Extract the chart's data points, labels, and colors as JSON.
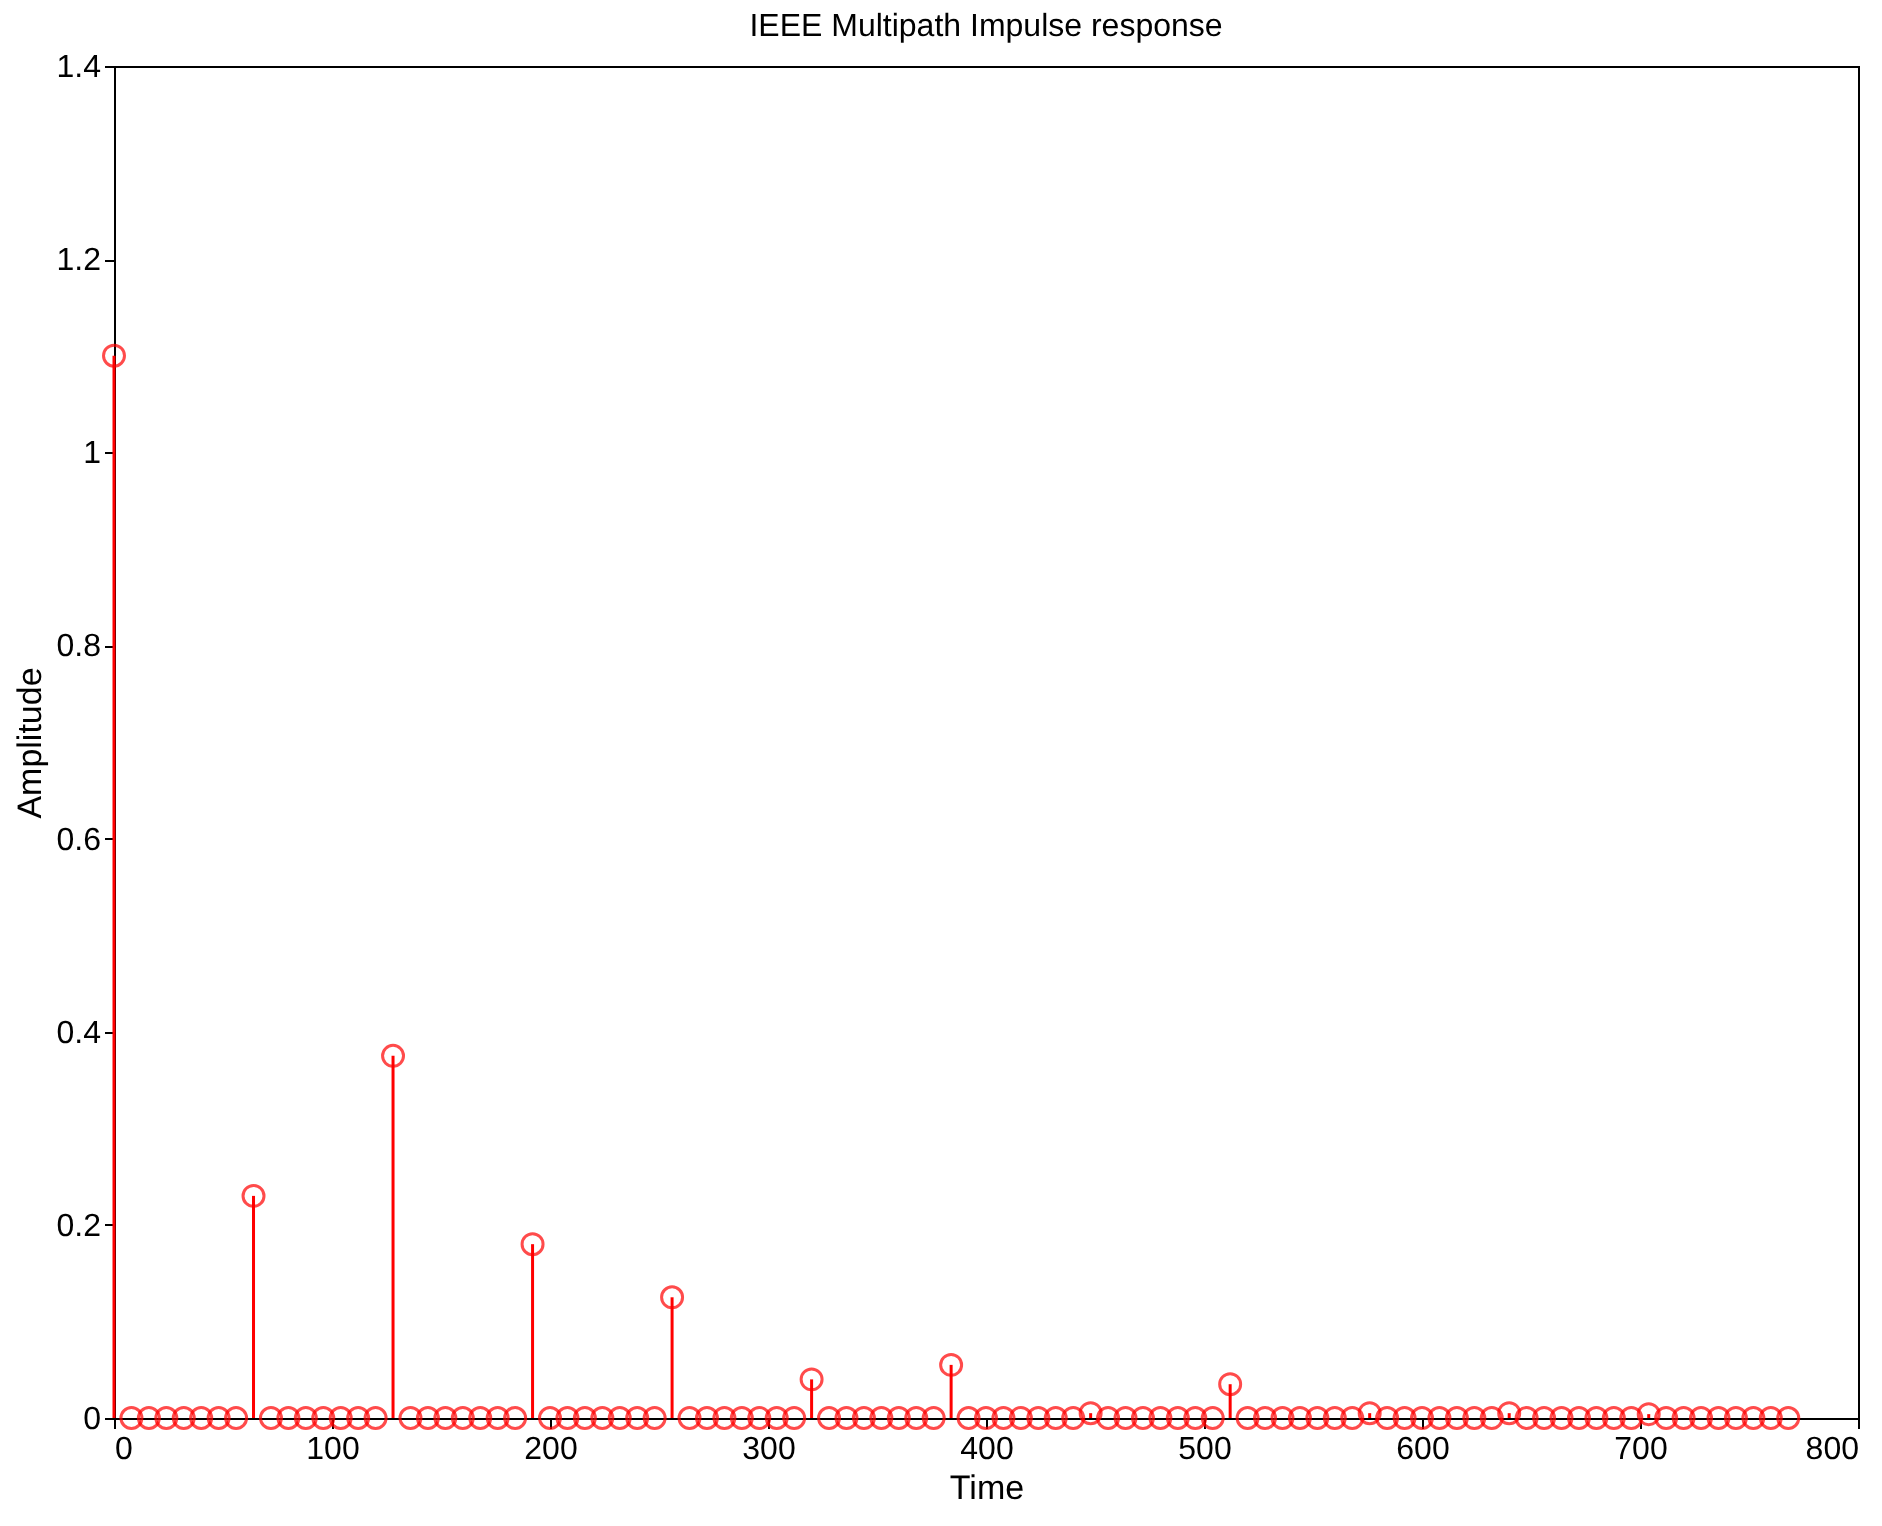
{
  "chart_data": {
    "type": "lollipop",
    "title": "IEEE Multipath Impulse response",
    "xlabel": "Time",
    "ylabel": "Amplitude",
    "x": [
      0,
      8,
      16,
      24,
      32,
      40,
      48,
      56,
      64,
      72,
      80,
      88,
      96,
      104,
      112,
      120,
      128,
      136,
      144,
      152,
      160,
      168,
      176,
      184,
      192,
      200,
      208,
      216,
      224,
      232,
      240,
      248,
      256,
      264,
      272,
      280,
      288,
      296,
      304,
      312,
      320,
      328,
      336,
      344,
      352,
      360,
      368,
      376,
      384,
      392,
      400,
      408,
      416,
      424,
      432,
      440,
      448,
      456,
      464,
      472,
      480,
      488,
      496,
      504,
      512,
      520,
      528,
      536,
      544,
      552,
      560,
      568,
      576,
      584,
      592,
      600,
      608,
      616,
      624,
      632,
      640,
      648,
      656,
      664,
      672,
      680,
      688,
      696,
      704,
      712,
      720,
      728,
      736,
      744,
      752,
      760,
      768
    ],
    "series": [
      {
        "color": "#ff0000",
        "values": [
          1.1,
          0,
          0,
          0,
          0,
          0,
          0,
          0,
          0.23,
          0,
          0,
          0,
          0,
          0,
          0,
          0,
          0.375,
          0,
          0,
          0,
          0,
          0,
          0,
          0,
          0.18,
          0,
          0,
          0,
          0,
          0,
          0,
          0,
          0.125,
          0,
          0,
          0,
          0,
          0,
          0,
          0,
          0.04,
          0,
          0,
          0,
          0,
          0,
          0,
          0,
          0.055,
          0,
          0,
          0,
          0,
          0,
          0,
          0,
          0.005,
          0,
          0,
          0,
          0,
          0,
          0,
          0,
          0.035,
          0,
          0,
          0,
          0,
          0,
          0,
          0,
          0.005,
          0,
          0,
          0,
          0,
          0,
          0,
          0,
          0.005,
          0,
          0,
          0,
          0,
          0,
          0,
          0,
          0.004,
          0,
          0,
          0,
          0,
          0,
          0,
          0,
          0
        ]
      }
    ],
    "xlim": [
      0,
      800
    ],
    "xticks": [
      0,
      100,
      200,
      300,
      400,
      500,
      600,
      700,
      800
    ],
    "ylim": [
      0,
      1.4
    ],
    "yticks": [
      0,
      0.2,
      0.4,
      0.6,
      0.8,
      1,
      1.2,
      1.4
    ],
    "marker": "circle",
    "grid": false
  }
}
